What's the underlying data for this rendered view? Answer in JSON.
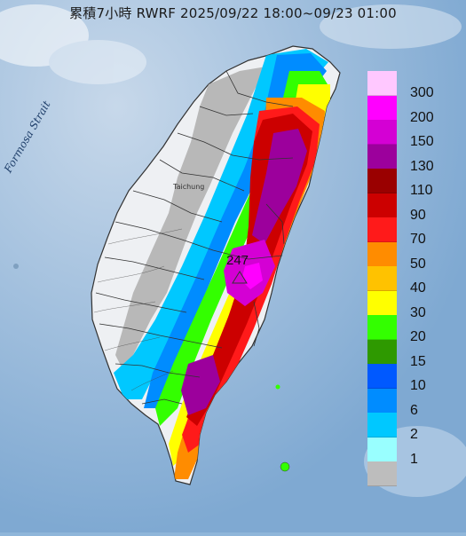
{
  "map": {
    "title": "累積7小時 RWRF 2025/09/22 18:00~09/23 01:00",
    "strait_label": "Formosa Strait",
    "city_label": "Taichung",
    "max_value": "247",
    "colors": {
      "sea": "#8fb6da",
      "land_dry": "#eef0f3",
      "land_trace": "#b8b8b8",
      "county_line": "#333333"
    }
  },
  "legend": {
    "items": [
      {
        "label": "300",
        "color": "#ffc8ff"
      },
      {
        "label": "200",
        "color": "#ff00ff"
      },
      {
        "label": "150",
        "color": "#d400d4"
      },
      {
        "label": "130",
        "color": "#9c009c"
      },
      {
        "label": "110",
        "color": "#9a0000"
      },
      {
        "label": "90",
        "color": "#cc0000"
      },
      {
        "label": "70",
        "color": "#ff1a1a"
      },
      {
        "label": "50",
        "color": "#ff8c00"
      },
      {
        "label": "40",
        "color": "#ffc200"
      },
      {
        "label": "30",
        "color": "#ffff00"
      },
      {
        "label": "20",
        "color": "#33ff00"
      },
      {
        "label": "15",
        "color": "#2e9900"
      },
      {
        "label": "10",
        "color": "#0059ff"
      },
      {
        "label": "6",
        "color": "#008cff"
      },
      {
        "label": "2",
        "color": "#00c8ff"
      },
      {
        "label": "1",
        "color": "#99ffff"
      },
      {
        "label": "",
        "color": "#bdbdbd"
      }
    ]
  }
}
